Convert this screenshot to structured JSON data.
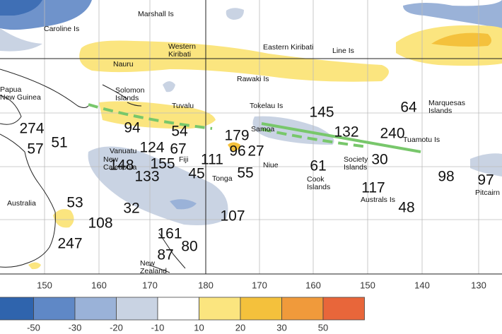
{
  "places": [
    {
      "lines": [
        "Marshall Is"
      ]
    },
    {
      "lines": [
        "Caroline Is"
      ]
    },
    {
      "lines": [
        "Western",
        "Kiribati"
      ]
    },
    {
      "lines": [
        "Eastern Kiribati"
      ]
    },
    {
      "lines": [
        "Line Is"
      ]
    },
    {
      "lines": [
        "Nauru"
      ]
    },
    {
      "lines": [
        "Rawaki Is"
      ]
    },
    {
      "lines": [
        "Papua",
        "New Guinea"
      ]
    },
    {
      "lines": [
        "Solomon",
        "Islands"
      ]
    },
    {
      "lines": [
        "Tuvalu"
      ]
    },
    {
      "lines": [
        "Tokelau Is"
      ]
    },
    {
      "lines": [
        "Marquesas",
        "Islands"
      ]
    },
    {
      "lines": [
        "Samoa"
      ]
    },
    {
      "lines": [
        "Tuamotu Is"
      ]
    },
    {
      "lines": [
        "Vanuatu"
      ]
    },
    {
      "lines": [
        "Fiji"
      ]
    },
    {
      "lines": [
        "Niue"
      ]
    },
    {
      "lines": [
        "Society",
        "Islands"
      ]
    },
    {
      "lines": [
        "New",
        "Caledonia"
      ]
    },
    {
      "lines": [
        "Tonga"
      ]
    },
    {
      "lines": [
        "Cook",
        "Islands"
      ]
    },
    {
      "lines": [
        "Australs Is"
      ]
    },
    {
      "lines": [
        "Australia"
      ]
    },
    {
      "lines": [
        "New",
        "Zealand"
      ]
    },
    {
      "lines": [
        "Pitcairn"
      ]
    }
  ],
  "stations": [
    274,
    57,
    51,
    94,
    54,
    179,
    96,
    27,
    145,
    132,
    240,
    64,
    124,
    67,
    111,
    148,
    155,
    133,
    45,
    55,
    61,
    30,
    117,
    98,
    97,
    53,
    32,
    108,
    107,
    48,
    247,
    161,
    80,
    87
  ],
  "longitudes": [
    150,
    160,
    170,
    180,
    170,
    160,
    150,
    140,
    130
  ],
  "legend": {
    "colors": [
      "#2f64ad",
      "#5f88c6",
      "#9ab2d8",
      "#c9d3e3",
      "#ffffff",
      "#fbe57f",
      "#f4c13c",
      "#f09a3b",
      "#e8663a"
    ],
    "ticks": [
      -50,
      -30,
      -20,
      -10,
      10,
      20,
      30,
      50
    ]
  }
}
